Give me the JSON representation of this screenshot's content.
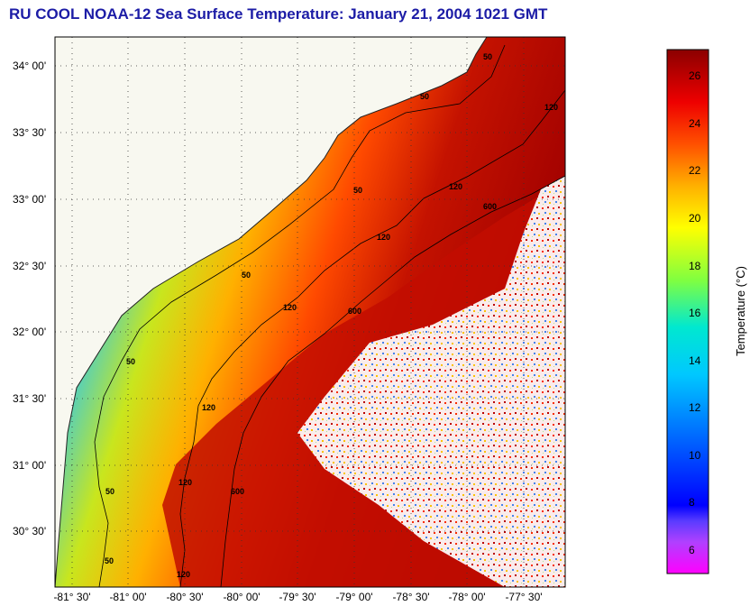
{
  "title": "RU COOL  NOAA-12  Sea Surface Temperature:  January 21, 2004 1021 GMT",
  "latitude_ticks": [
    "34° 00'",
    "33° 30'",
    "33° 00'",
    "32° 30'",
    "32° 00'",
    "31° 30'",
    "31° 00'",
    "30° 30'"
  ],
  "longitude_ticks": [
    "-81° 30'",
    "-81° 00'",
    "-80° 30'",
    "-80° 00'",
    "-79° 30'",
    "-79° 00'",
    "-78° 30'",
    "-78° 00'",
    "-77° 30'"
  ],
  "colorbar": {
    "label": "Temperature (°C)",
    "ticks": [
      "26",
      "24",
      "22",
      "20",
      "18",
      "16",
      "14",
      "12",
      "10",
      "8",
      "6"
    ]
  },
  "contours": {
    "labels": [
      "50",
      "50",
      "50",
      "50",
      "50",
      "50",
      "50",
      "120",
      "120",
      "120",
      "120",
      "120",
      "120",
      "600",
      "600",
      "600"
    ]
  },
  "colors": {
    "title": "#1c1ca6",
    "land": "#f8f8f0",
    "cold": "#2a7cff",
    "warm": "#b40000"
  }
}
